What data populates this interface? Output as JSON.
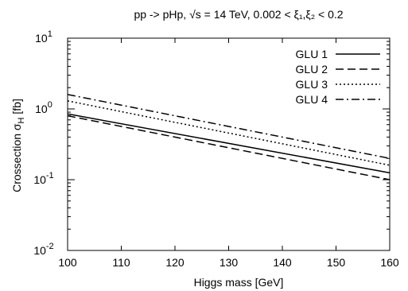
{
  "chart_data": {
    "type": "line",
    "title": "pp -> pHp, √s = 14 TeV,  0.002 < ξ₁,ξ₂ < 0.2",
    "xlabel": "Higgs mass [GeV]",
    "ylabel": "Crossection σ_H [fb]",
    "xlim": [
      100,
      160
    ],
    "ylim": [
      0.01,
      10
    ],
    "yscale": "log",
    "grid": false,
    "legend_position": "top-right",
    "x_ticks": [
      100,
      110,
      120,
      130,
      140,
      150,
      160
    ],
    "x_tick_labels": [
      "100",
      "110",
      "120",
      "130",
      "140",
      "150",
      "160"
    ],
    "y_ticks": [
      0.01,
      0.1,
      1,
      10
    ],
    "y_tick_labels": [
      {
        "base": "10",
        "exp": "-2"
      },
      {
        "base": "10",
        "exp": "-1"
      },
      {
        "base": "10",
        "exp": "0"
      },
      {
        "base": "10",
        "exp": "1"
      }
    ],
    "x": [
      100,
      160
    ],
    "series": [
      {
        "name": "GLU 1",
        "values": [
          0.85,
          0.125
        ],
        "dash": "solid"
      },
      {
        "name": "GLU 2",
        "values": [
          0.8,
          0.1
        ],
        "dash": "dashed"
      },
      {
        "name": "GLU 3",
        "values": [
          1.3,
          0.16
        ],
        "dash": "dotted"
      },
      {
        "name": "GLU 4",
        "values": [
          1.6,
          0.2
        ],
        "dash": "dashdot"
      }
    ]
  }
}
